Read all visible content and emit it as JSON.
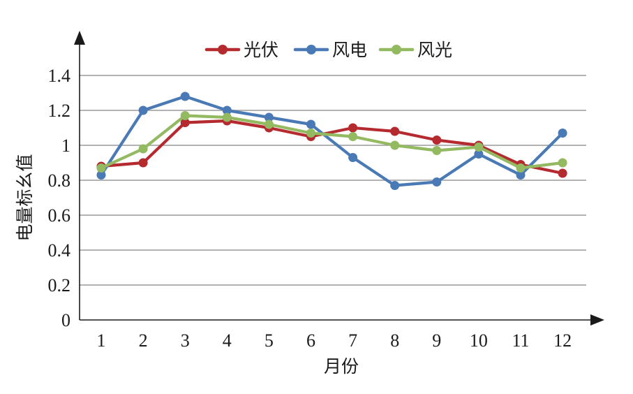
{
  "chart_data": {
    "type": "line",
    "xlabel": "月份",
    "ylabel": "电量标幺值",
    "categories": [
      "1",
      "2",
      "3",
      "4",
      "5",
      "6",
      "7",
      "8",
      "9",
      "10",
      "11",
      "12"
    ],
    "ylim": [
      0,
      1.4
    ],
    "yticks": [
      "0",
      "0.2",
      "0.4",
      "0.6",
      "0.8",
      "1",
      "1.2",
      "1.4"
    ],
    "grid": true,
    "legend_position": "top",
    "series": [
      {
        "name": "光伏",
        "color": "#b52a2f",
        "values": [
          0.88,
          0.9,
          1.13,
          1.14,
          1.1,
          1.05,
          1.1,
          1.08,
          1.03,
          1.0,
          0.89,
          0.84
        ]
      },
      {
        "name": "风电",
        "color": "#4a7ab5",
        "values": [
          0.83,
          1.2,
          1.28,
          1.2,
          1.16,
          1.12,
          0.93,
          0.77,
          0.79,
          0.95,
          0.83,
          1.07
        ]
      },
      {
        "name": "风光",
        "color": "#93b961",
        "values": [
          0.87,
          0.98,
          1.17,
          1.16,
          1.12,
          1.07,
          1.05,
          1.0,
          0.97,
          0.99,
          0.87,
          0.9
        ]
      }
    ]
  }
}
